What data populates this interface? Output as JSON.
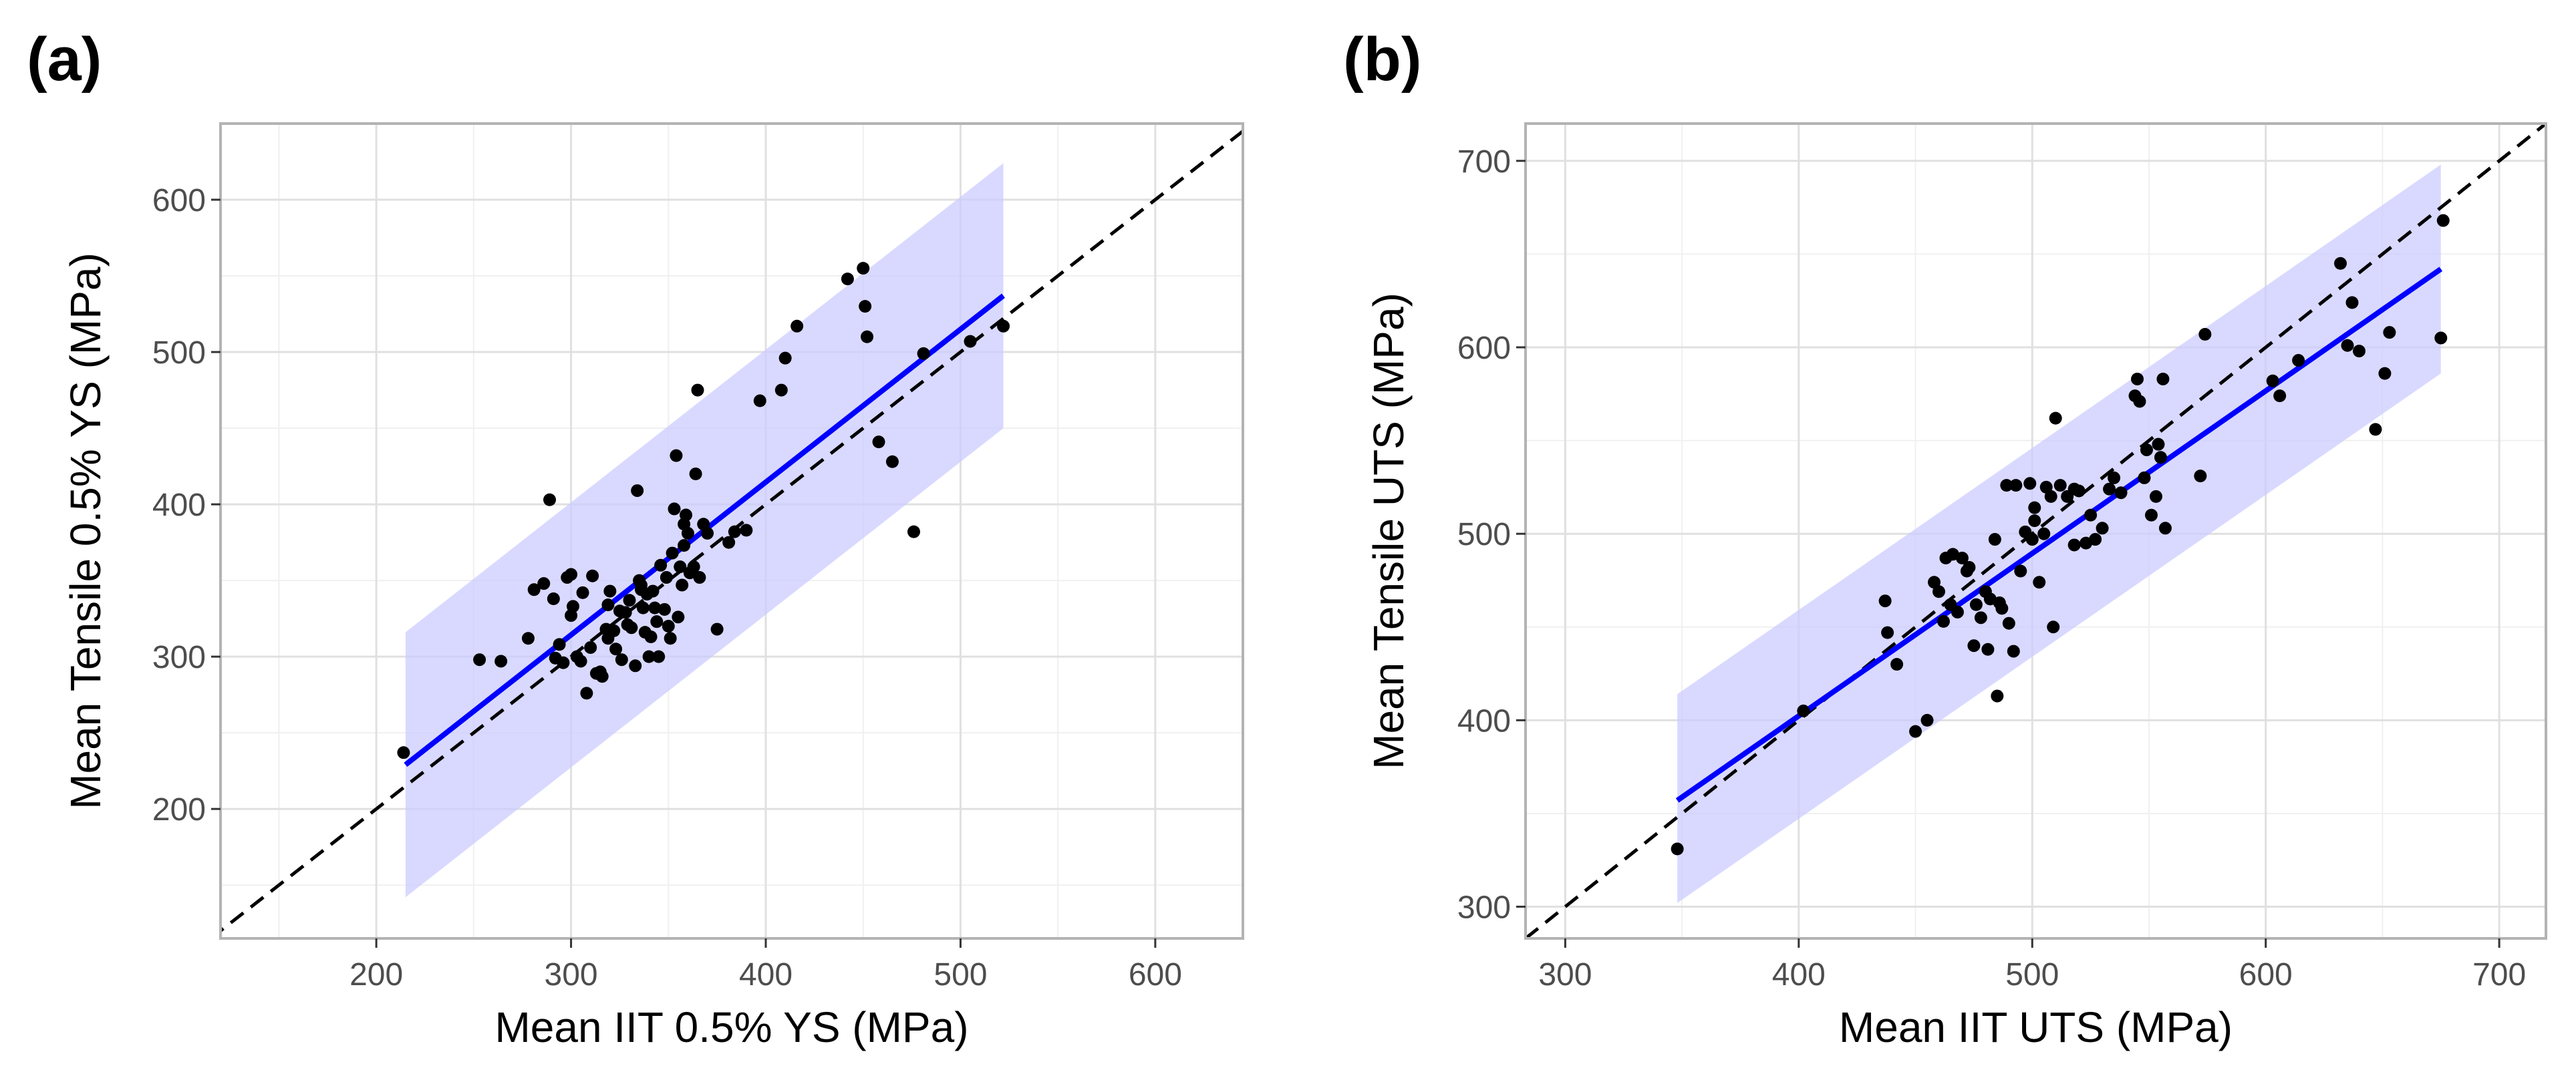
{
  "chart_data": [
    {
      "type": "scatter",
      "panel_label": "(a)",
      "title": "",
      "xlabel": "Mean IIT 0.5% YS (MPa)",
      "ylabel": "Mean Tensile 0.5% YS (MPa)",
      "xlim": [
        120,
        645
      ],
      "ylim": [
        115,
        650
      ],
      "xticks": [
        200,
        300,
        400,
        500,
        600
      ],
      "yticks": [
        200,
        300,
        400,
        500,
        600
      ],
      "xtick_labels": [
        "200",
        "300",
        "400",
        "500",
        "600"
      ],
      "ytick_labels": [
        "200",
        "300",
        "400",
        "500",
        "600"
      ],
      "grid": true,
      "colors": {
        "points": "#000000",
        "fit_line": "#0000ff",
        "band": "#ccccff",
        "identity_line": "#000000",
        "grid_major": "#e0e0e0",
        "grid_minor": "#f0f0f0",
        "frame": "#b3b3b3"
      },
      "fit_line": {
        "x": [
          215,
          522
        ],
        "y": [
          229,
          537
        ]
      },
      "prediction_band": {
        "x": [
          215,
          522
        ],
        "lower": [
          142,
          450
        ],
        "upper": [
          316,
          624
        ]
      },
      "identity_line": {
        "x": [
          115,
          650
        ],
        "y": [
          115,
          650
        ]
      },
      "points": {
        "x": [
          214,
          253,
          264,
          278,
          281,
          286,
          289,
          291,
          292,
          294,
          296,
          298,
          300,
          300,
          301,
          303,
          305,
          306,
          308,
          310,
          311,
          313,
          315,
          316,
          318,
          319,
          320,
          322,
          323,
          325,
          326,
          328,
          329,
          330,
          331,
          333,
          334,
          335,
          336,
          337,
          338,
          339,
          340,
          341,
          342,
          343,
          344,
          345,
          346,
          348,
          349,
          350,
          351,
          352,
          353,
          354,
          355,
          356,
          357,
          358,
          358,
          359,
          360,
          361,
          363,
          364,
          365,
          366,
          368,
          370,
          375,
          381,
          384,
          390,
          397,
          408,
          410,
          416,
          442,
          450,
          451,
          452,
          458,
          465,
          476,
          481,
          505,
          522,
          319,
          336
        ],
        "y": [
          237,
          298,
          297,
          312,
          344,
          348,
          403,
          338,
          299,
          308,
          296,
          352,
          354,
          327,
          333,
          300,
          297,
          342,
          276,
          306,
          353,
          289,
          290,
          287,
          318,
          312,
          343,
          317,
          305,
          330,
          298,
          329,
          321,
          337,
          319,
          294,
          409,
          350,
          347,
          332,
          316,
          341,
          300,
          313,
          343,
          332,
          323,
          300,
          360,
          331,
          352,
          320,
          312,
          368,
          397,
          432,
          326,
          359,
          347,
          387,
          373,
          393,
          381,
          355,
          359,
          420,
          475,
          352,
          387,
          381,
          318,
          375,
          382,
          383,
          468,
          475,
          496,
          517,
          548,
          555,
          530,
          510,
          441,
          428,
          382,
          499,
          507,
          517,
          334,
          344
        ]
      }
    },
    {
      "type": "scatter",
      "panel_label": "(b)",
      "title": "",
      "xlabel": "Mean IIT UTS (MPa)",
      "ylabel": "Mean Tensile UTS (MPa)",
      "xlim": [
        283,
        720
      ],
      "ylim": [
        283,
        720
      ],
      "xticks": [
        300,
        400,
        500,
        600,
        700
      ],
      "yticks": [
        300,
        400,
        500,
        600,
        700
      ],
      "xtick_labels": [
        "300",
        "400",
        "500",
        "600",
        "700"
      ],
      "ytick_labels": [
        "300",
        "400",
        "500",
        "600",
        "700"
      ],
      "grid": true,
      "colors": {
        "points": "#000000",
        "fit_line": "#0000ff",
        "band": "#ccccff",
        "identity_line": "#000000",
        "grid_major": "#e0e0e0",
        "grid_minor": "#f0f0f0",
        "frame": "#b3b3b3"
      },
      "fit_line": {
        "x": [
          348,
          675
        ],
        "y": [
          357,
          642
        ]
      },
      "prediction_band": {
        "x": [
          348,
          675
        ],
        "lower": [
          302,
          586
        ],
        "upper": [
          414,
          698
        ]
      },
      "identity_line": {
        "x": [
          283,
          720
        ],
        "y": [
          283,
          720
        ]
      },
      "points": {
        "x": [
          348,
          402,
          437,
          438,
          442,
          450,
          455,
          458,
          460,
          462,
          463,
          465,
          466,
          468,
          470,
          472,
          473,
          475,
          476,
          478,
          480,
          481,
          482,
          484,
          485,
          486,
          487,
          489,
          490,
          492,
          493,
          495,
          497,
          499,
          500,
          501,
          503,
          505,
          506,
          508,
          509,
          510,
          512,
          515,
          518,
          520,
          523,
          525,
          527,
          530,
          533,
          535,
          538,
          545,
          546,
          548,
          549,
          551,
          553,
          554,
          555,
          556,
          557,
          572,
          574,
          603,
          606,
          614,
          632,
          635,
          637,
          640,
          647,
          651,
          653,
          675,
          676,
          544,
          501,
          518
        ],
        "y": [
          331,
          405,
          464,
          447,
          430,
          394,
          400,
          474,
          469,
          453,
          487,
          462,
          489,
          458,
          487,
          480,
          482,
          440,
          462,
          455,
          469,
          438,
          465,
          497,
          413,
          463,
          460,
          526,
          452,
          437,
          526,
          480,
          501,
          527,
          497,
          507,
          474,
          500,
          525,
          520,
          450,
          562,
          526,
          520,
          524,
          523,
          495,
          510,
          497,
          503,
          524,
          530,
          522,
          583,
          571,
          530,
          545,
          510,
          520,
          548,
          541,
          583,
          503,
          531,
          607,
          582,
          574,
          593,
          645,
          601,
          624,
          598,
          556,
          586,
          608,
          605,
          668,
          574,
          514,
          494
        ]
      }
    }
  ]
}
